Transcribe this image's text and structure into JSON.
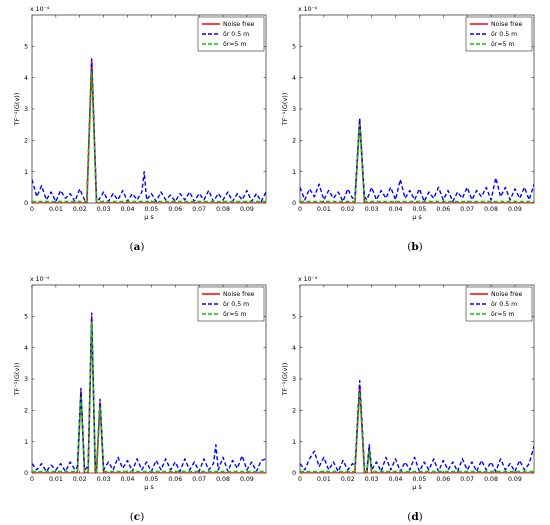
{
  "figure": {
    "panels": [
      {
        "caption": "(a)"
      },
      {
        "caption": "(b)"
      },
      {
        "caption": "(c)"
      },
      {
        "caption": "(d)"
      }
    ]
  },
  "chart_data": [
    {
      "type": "line",
      "panel": "(a)",
      "title": "",
      "xlabel": "μ s",
      "ylabel": "TF⁻¹(G(v))",
      "y_scale_label": "x 10⁻⁴",
      "xlim": [
        0,
        0.098
      ],
      "ylim": [
        0,
        6
      ],
      "xticks": [
        0,
        0.01,
        0.02,
        0.03,
        0.04,
        0.05,
        0.06,
        0.07,
        0.08,
        0.09
      ],
      "xtick_labels": [
        "0",
        "0.01",
        "0.02",
        "0.03",
        "0.04",
        "0.05",
        "0.06",
        "0.07",
        "0.08",
        "0.09"
      ],
      "yticks": [
        0,
        1,
        2,
        3,
        4,
        5
      ],
      "ytick_labels": [
        "0",
        "1",
        "2",
        "3",
        "4",
        "5"
      ],
      "legend_position": "top-right",
      "grid": false,
      "series": [
        {
          "name": "Noise free",
          "color": "#ff0000",
          "style": "solid",
          "x": [
            0,
            0.023,
            0.025,
            0.027,
            0.098
          ],
          "y": [
            0,
            0,
            4.55,
            0,
            0
          ]
        },
        {
          "name": "δr 0.5 m",
          "color": "#0000ff",
          "style": "dashed",
          "x": [
            0,
            0.002,
            0.004,
            0.006,
            0.008,
            0.01,
            0.012,
            0.014,
            0.016,
            0.018,
            0.02,
            0.022,
            0.023,
            0.025,
            0.027,
            0.028,
            0.03,
            0.032,
            0.034,
            0.036,
            0.038,
            0.04,
            0.042,
            0.044,
            0.046,
            0.047,
            0.048,
            0.05,
            0.052,
            0.054,
            0.056,
            0.058,
            0.06,
            0.062,
            0.064,
            0.066,
            0.068,
            0.07,
            0.072,
            0.074,
            0.076,
            0.078,
            0.08,
            0.082,
            0.084,
            0.086,
            0.088,
            0.09,
            0.092,
            0.094,
            0.096,
            0.098
          ],
          "y": [
            0.75,
            0.2,
            0.55,
            0.1,
            0.35,
            0.05,
            0.4,
            0.15,
            0.3,
            0.05,
            0.45,
            0.1,
            0.2,
            4.6,
            0.2,
            0.1,
            0.35,
            0.05,
            0.3,
            0.1,
            0.4,
            0.05,
            0.3,
            0.1,
            0.35,
            1.0,
            0.1,
            0.3,
            0.05,
            0.35,
            0.1,
            0.25,
            0.05,
            0.3,
            0.1,
            0.35,
            0.05,
            0.3,
            0.1,
            0.4,
            0.05,
            0.3,
            0.1,
            0.35,
            0.05,
            0.3,
            0.1,
            0.4,
            0.05,
            0.3,
            0.05,
            0.35
          ]
        },
        {
          "name": "δr=5 m",
          "color": "#00cc00",
          "style": "dashed",
          "x": [
            0,
            0.023,
            0.025,
            0.027,
            0.098
          ],
          "y": [
            0.05,
            0.05,
            4.2,
            0.05,
            0.05
          ]
        }
      ]
    },
    {
      "type": "line",
      "panel": "(b)",
      "title": "",
      "xlabel": "μ s",
      "ylabel": "TF⁻¹(G(v))",
      "y_scale_label": "x 10⁻⁴",
      "xlim": [
        0,
        0.098
      ],
      "ylim": [
        0,
        6
      ],
      "xticks": [
        0,
        0.01,
        0.02,
        0.03,
        0.04,
        0.05,
        0.06,
        0.07,
        0.08,
        0.09
      ],
      "xtick_labels": [
        "0",
        "0.01",
        "0.02",
        "0.03",
        "0.04",
        "0.05",
        "0.06",
        "0.07",
        "0.08",
        "0.09"
      ],
      "yticks": [
        0,
        1,
        2,
        3,
        4,
        5
      ],
      "ytick_labels": [
        "0",
        "1",
        "2",
        "3",
        "4",
        "5"
      ],
      "legend_position": "top-right",
      "grid": false,
      "series": [
        {
          "name": "Noise free",
          "color": "#ff0000",
          "style": "solid",
          "x": [
            0,
            0.023,
            0.025,
            0.027,
            0.098
          ],
          "y": [
            0,
            0,
            2.65,
            0,
            0
          ]
        },
        {
          "name": "δr 0.5 m",
          "color": "#0000ff",
          "style": "dashed",
          "x": [
            0,
            0.002,
            0.004,
            0.006,
            0.008,
            0.01,
            0.012,
            0.014,
            0.016,
            0.018,
            0.02,
            0.022,
            0.023,
            0.025,
            0.027,
            0.028,
            0.03,
            0.032,
            0.034,
            0.036,
            0.038,
            0.04,
            0.042,
            0.044,
            0.046,
            0.048,
            0.05,
            0.052,
            0.054,
            0.056,
            0.058,
            0.06,
            0.062,
            0.064,
            0.066,
            0.068,
            0.07,
            0.072,
            0.074,
            0.076,
            0.078,
            0.08,
            0.082,
            0.084,
            0.086,
            0.088,
            0.09,
            0.092,
            0.094,
            0.096,
            0.098
          ],
          "y": [
            0.5,
            0.1,
            0.45,
            0.2,
            0.6,
            0.1,
            0.4,
            0.15,
            0.35,
            0.05,
            0.45,
            0.15,
            0.2,
            2.7,
            0.2,
            0.1,
            0.5,
            0.1,
            0.4,
            0.15,
            0.5,
            0.1,
            0.75,
            0.15,
            0.4,
            0.1,
            0.45,
            0.05,
            0.35,
            0.15,
            0.5,
            0.1,
            0.4,
            0.05,
            0.35,
            0.15,
            0.5,
            0.1,
            0.4,
            0.2,
            0.5,
            0.1,
            0.8,
            0.2,
            0.5,
            0.1,
            0.45,
            0.15,
            0.5,
            0.1,
            0.6
          ]
        },
        {
          "name": "δr=5 m",
          "color": "#00cc00",
          "style": "dashed",
          "x": [
            0,
            0.023,
            0.025,
            0.027,
            0.098
          ],
          "y": [
            0.05,
            0.05,
            2.5,
            0.05,
            0.05
          ]
        }
      ]
    },
    {
      "type": "line",
      "panel": "(c)",
      "title": "",
      "xlabel": "μ s",
      "ylabel": "TF⁻¹(G(v))",
      "y_scale_label": "x 10⁻⁴",
      "xlim": [
        0,
        0.098
      ],
      "ylim": [
        0,
        6
      ],
      "xticks": [
        0,
        0.01,
        0.02,
        0.03,
        0.04,
        0.05,
        0.06,
        0.07,
        0.08,
        0.09
      ],
      "xtick_labels": [
        "0",
        "0.01",
        "0.02",
        "0.03",
        "0.04",
        "0.05",
        "0.06",
        "0.07",
        "0.08",
        "0.09"
      ],
      "yticks": [
        0,
        1,
        2,
        3,
        4,
        5
      ],
      "ytick_labels": [
        "0",
        "1",
        "2",
        "3",
        "4",
        "5"
      ],
      "legend_position": "top-right",
      "grid": false,
      "series": [
        {
          "name": "Noise free",
          "color": "#ff0000",
          "style": "solid",
          "x": [
            0,
            0.019,
            0.0205,
            0.022,
            0.0235,
            0.025,
            0.0265,
            0.027,
            0.0285,
            0.03,
            0.098
          ],
          "y": [
            0,
            0,
            2.6,
            0,
            0,
            5.0,
            0,
            0,
            2.25,
            0,
            0
          ]
        },
        {
          "name": "δr 0.5 m",
          "color": "#0000ff",
          "style": "dashed",
          "x": [
            0,
            0.002,
            0.004,
            0.006,
            0.008,
            0.01,
            0.012,
            0.014,
            0.016,
            0.018,
            0.019,
            0.0205,
            0.022,
            0.0235,
            0.025,
            0.0265,
            0.027,
            0.0285,
            0.03,
            0.032,
            0.034,
            0.036,
            0.038,
            0.04,
            0.042,
            0.044,
            0.046,
            0.048,
            0.05,
            0.052,
            0.054,
            0.056,
            0.058,
            0.06,
            0.062,
            0.064,
            0.066,
            0.068,
            0.07,
            0.072,
            0.074,
            0.076,
            0.077,
            0.078,
            0.08,
            0.082,
            0.084,
            0.086,
            0.088,
            0.09,
            0.092,
            0.094,
            0.096,
            0.098
          ],
          "y": [
            0.3,
            0.1,
            0.3,
            0.05,
            0.25,
            0.1,
            0.3,
            0.05,
            0.35,
            0.1,
            0.2,
            2.7,
            0.1,
            0.2,
            5.1,
            0.2,
            0.1,
            2.35,
            0.1,
            0.35,
            0.1,
            0.5,
            0.15,
            0.4,
            0.05,
            0.45,
            0.1,
            0.35,
            0.05,
            0.4,
            0.1,
            0.45,
            0.1,
            0.35,
            0.05,
            0.45,
            0.1,
            0.35,
            0.05,
            0.45,
            0.1,
            0.3,
            0.9,
            0.1,
            0.5,
            0.05,
            0.4,
            0.15,
            0.55,
            0.1,
            0.35,
            0.05,
            0.4,
            0.45
          ]
        },
        {
          "name": "δr=5 m",
          "color": "#00cc00",
          "style": "dashed",
          "x": [
            0,
            0.019,
            0.0205,
            0.022,
            0.0235,
            0.025,
            0.0265,
            0.027,
            0.0285,
            0.03,
            0.098
          ],
          "y": [
            0.05,
            0.05,
            2.4,
            0.05,
            0.05,
            4.8,
            0.05,
            0.05,
            2.1,
            0.05,
            0.05
          ]
        }
      ]
    },
    {
      "type": "line",
      "panel": "(d)",
      "title": "",
      "xlabel": "μ s",
      "ylabel": "TF⁻¹(G(v))",
      "y_scale_label": "x 10⁻⁴",
      "xlim": [
        0,
        0.098
      ],
      "ylim": [
        0,
        6
      ],
      "xticks": [
        0,
        0.01,
        0.02,
        0.03,
        0.04,
        0.05,
        0.06,
        0.07,
        0.08,
        0.09
      ],
      "xtick_labels": [
        "0",
        "0.01",
        "0.02",
        "0.03",
        "0.04",
        "0.05",
        "0.06",
        "0.07",
        "0.08",
        "0.09"
      ],
      "yticks": [
        0,
        1,
        2,
        3,
        4,
        5
      ],
      "ytick_labels": [
        "0",
        "1",
        "2",
        "3",
        "4",
        "5"
      ],
      "legend_position": "top-right",
      "grid": false,
      "series": [
        {
          "name": "Noise free",
          "color": "#ff0000",
          "style": "solid",
          "x": [
            0,
            0.023,
            0.025,
            0.027,
            0.028,
            0.029,
            0.03,
            0.098
          ],
          "y": [
            0,
            0,
            2.8,
            0,
            0,
            0.8,
            0,
            0
          ]
        },
        {
          "name": "δr 0.5 m",
          "color": "#0000ff",
          "style": "dashed",
          "x": [
            0,
            0.002,
            0.004,
            0.006,
            0.008,
            0.01,
            0.012,
            0.014,
            0.016,
            0.018,
            0.02,
            0.022,
            0.023,
            0.025,
            0.027,
            0.028,
            0.029,
            0.03,
            0.032,
            0.034,
            0.036,
            0.038,
            0.04,
            0.042,
            0.044,
            0.046,
            0.048,
            0.05,
            0.052,
            0.054,
            0.056,
            0.058,
            0.06,
            0.062,
            0.064,
            0.066,
            0.068,
            0.07,
            0.072,
            0.074,
            0.076,
            0.078,
            0.08,
            0.082,
            0.084,
            0.086,
            0.088,
            0.09,
            0.092,
            0.094,
            0.096,
            0.098
          ],
          "y": [
            0.3,
            0.1,
            0.45,
            0.7,
            0.2,
            0.5,
            0.1,
            0.35,
            0.05,
            0.4,
            0.1,
            0.3,
            0.2,
            2.95,
            0.2,
            0.1,
            0.9,
            0.1,
            0.35,
            0.05,
            0.5,
            0.1,
            0.45,
            0.05,
            0.35,
            0.1,
            0.5,
            0.05,
            0.35,
            0.1,
            0.45,
            0.05,
            0.4,
            0.1,
            0.35,
            0.05,
            0.45,
            0.1,
            0.35,
            0.05,
            0.4,
            0.1,
            0.35,
            0.05,
            0.45,
            0.1,
            0.3,
            0.05,
            0.4,
            0.1,
            0.3,
            0.85
          ]
        },
        {
          "name": "δr=5 m",
          "color": "#00cc00",
          "style": "dashed",
          "x": [
            0,
            0.023,
            0.025,
            0.027,
            0.028,
            0.029,
            0.03,
            0.098
          ],
          "y": [
            0.05,
            0.05,
            2.6,
            0.05,
            0.05,
            0.7,
            0.05,
            0.05
          ]
        }
      ]
    }
  ]
}
